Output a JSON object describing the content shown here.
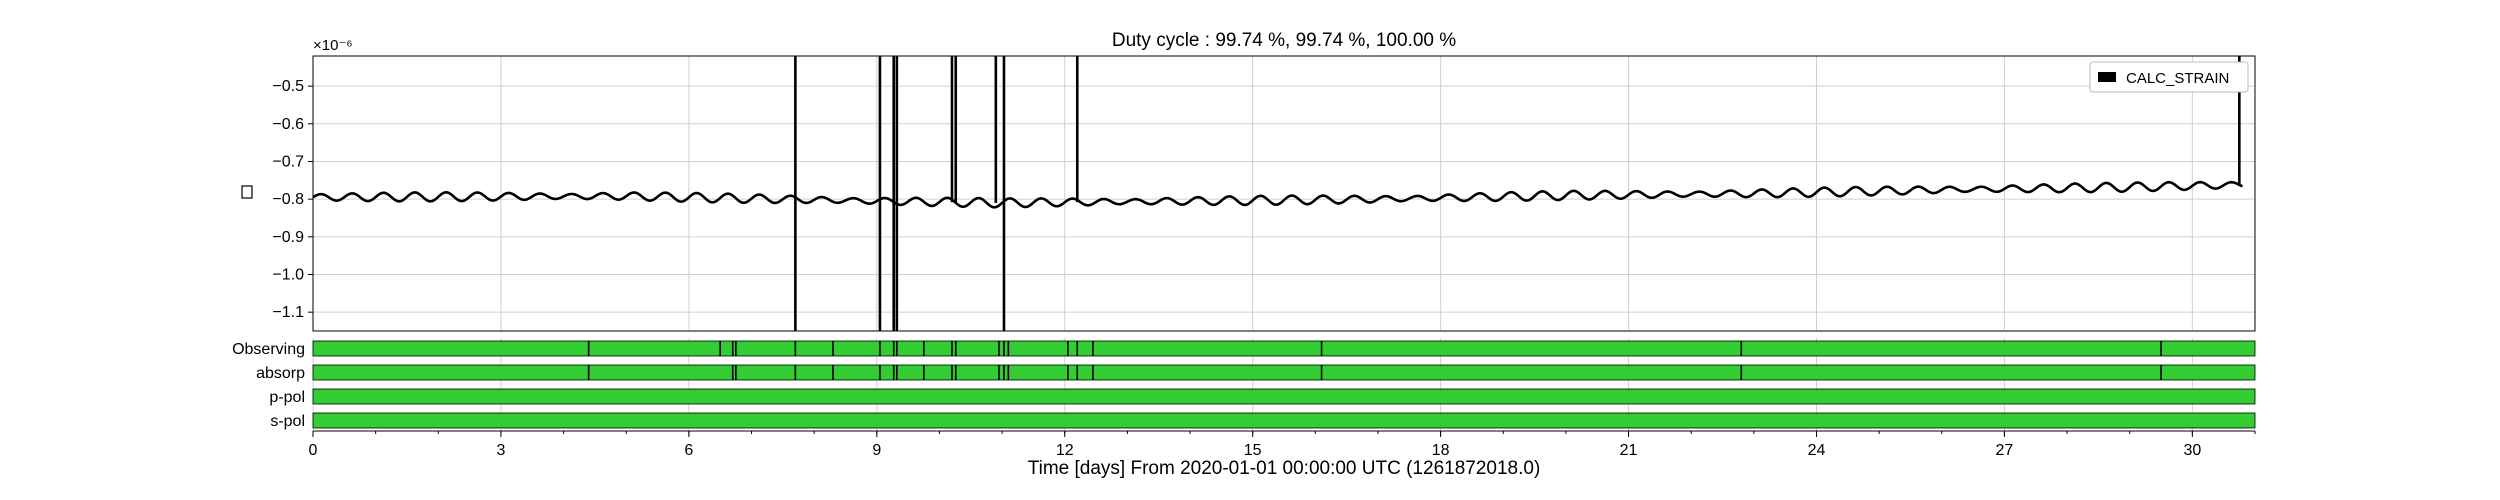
{
  "chart_data": {
    "type": "line",
    "title": "Duty cycle : 99.74 %, 99.74 %, 100.00 %",
    "xlabel": "Time [days] From 2020-01-01 00:00:00 UTC (1261872018.0)",
    "ylabel": "",
    "y_exponent": "×10⁻⁶",
    "grid": true,
    "legend_position": "top-right",
    "xlim": [
      0,
      31
    ],
    "ylim": [
      -1.15,
      -0.42
    ],
    "xticks": [
      0,
      3,
      6,
      9,
      12,
      15,
      18,
      21,
      24,
      27,
      30
    ],
    "yticks": [
      -1.1,
      -1.0,
      -0.9,
      -0.8,
      -0.7,
      -0.6,
      -0.5
    ],
    "series": [
      {
        "name": "CALC_STRAIN",
        "color": "#000000",
        "trend": [
          [
            0,
            -0.795
          ],
          [
            5,
            -0.792
          ],
          [
            9,
            -0.805
          ],
          [
            11,
            -0.81
          ],
          [
            14,
            -0.805
          ],
          [
            17,
            -0.8
          ],
          [
            20,
            -0.79
          ],
          [
            23,
            -0.785
          ],
          [
            26,
            -0.775
          ],
          [
            29,
            -0.768
          ],
          [
            30.8,
            -0.762
          ]
        ],
        "oscillation_amplitude": 0.012,
        "oscillation_period_days": 0.5,
        "spikes_up": [
          7.7,
          9.05,
          9.27,
          9.32,
          10.2,
          10.26,
          10.9,
          11.03,
          12.2,
          30.75
        ],
        "spikes_down": [
          7.7,
          9.05,
          9.27,
          9.32,
          11.03
        ]
      }
    ],
    "segment_rows": [
      {
        "label": "Observing",
        "color": "#33cc33",
        "gaps": [
          4.4,
          6.5,
          6.7,
          6.75,
          7.7,
          8.3,
          9.05,
          9.27,
          9.32,
          9.75,
          10.2,
          10.26,
          10.95,
          11.03,
          11.1,
          12.05,
          12.2,
          12.45,
          16.1,
          22.8,
          29.5
        ]
      },
      {
        "label": "absorp",
        "color": "#33cc33",
        "gaps": [
          4.4,
          6.7,
          6.75,
          7.7,
          8.3,
          9.05,
          9.27,
          9.32,
          9.75,
          10.2,
          10.26,
          10.95,
          11.03,
          11.1,
          12.05,
          12.2,
          12.45,
          16.1,
          22.8,
          29.5
        ]
      },
      {
        "label": "p-pol",
        "color": "#33cc33",
        "gaps": []
      },
      {
        "label": "s-pol",
        "color": "#33cc33",
        "gaps": []
      }
    ]
  }
}
